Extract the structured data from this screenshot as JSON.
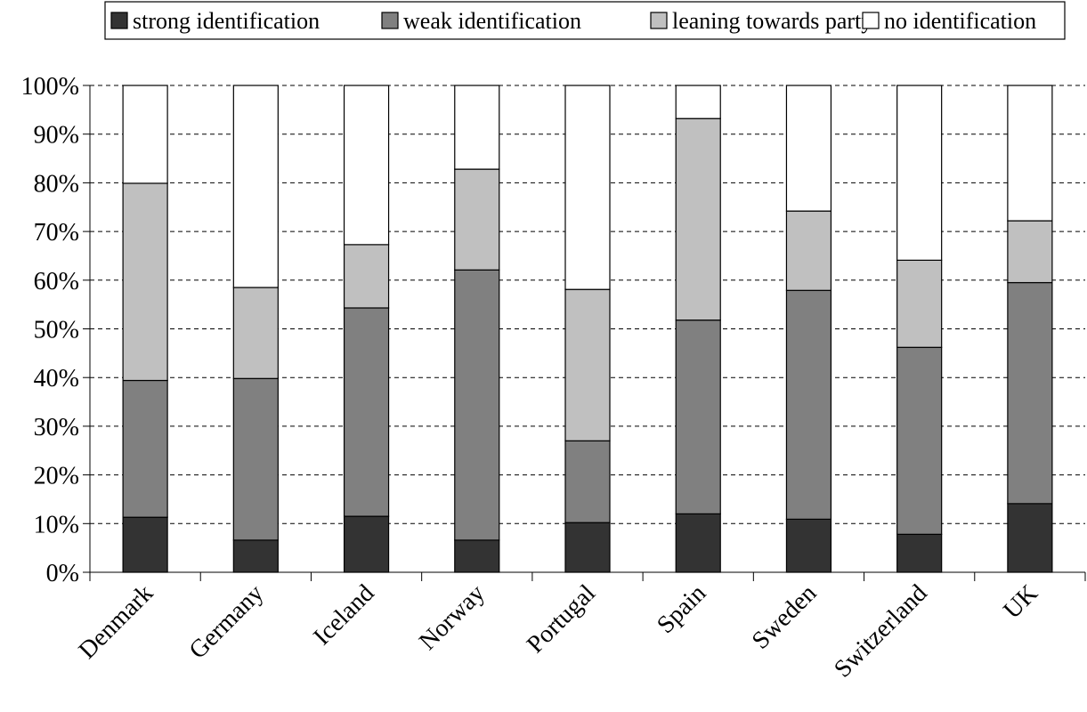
{
  "chart_data": {
    "type": "bar",
    "stacked": true,
    "normalized_percent": true,
    "categories": [
      "Denmark",
      "Germany",
      "Iceland",
      "Norway",
      "Portugal",
      "Spain",
      "Sweden",
      "Switzerland",
      "UK"
    ],
    "series": [
      {
        "name": "strong identification",
        "color": "#333333",
        "values": [
          11.3,
          6.6,
          11.5,
          6.6,
          10.2,
          12.0,
          10.9,
          7.8,
          14.1
        ]
      },
      {
        "name": "weak identification",
        "color": "#808080",
        "values": [
          28.1,
          33.2,
          42.8,
          55.5,
          16.8,
          39.8,
          47.0,
          38.4,
          45.4
        ]
      },
      {
        "name": "leaning towards party",
        "color": "#c0c0c0",
        "values": [
          40.5,
          18.7,
          13.0,
          20.7,
          31.1,
          41.4,
          16.3,
          17.9,
          12.7
        ]
      },
      {
        "name": "no identification",
        "color": "#ffffff",
        "values": [
          20.1,
          41.5,
          32.7,
          17.2,
          41.9,
          6.8,
          25.8,
          35.9,
          27.8
        ]
      }
    ],
    "ylim": [
      0,
      100
    ],
    "yticks": [
      "0%",
      "10%",
      "20%",
      "30%",
      "40%",
      "50%",
      "60%",
      "70%",
      "80%",
      "90%",
      "100%"
    ],
    "grid": "horizontal dashed",
    "legend_position": "top",
    "xlabel": "",
    "ylabel": "",
    "title": ""
  }
}
